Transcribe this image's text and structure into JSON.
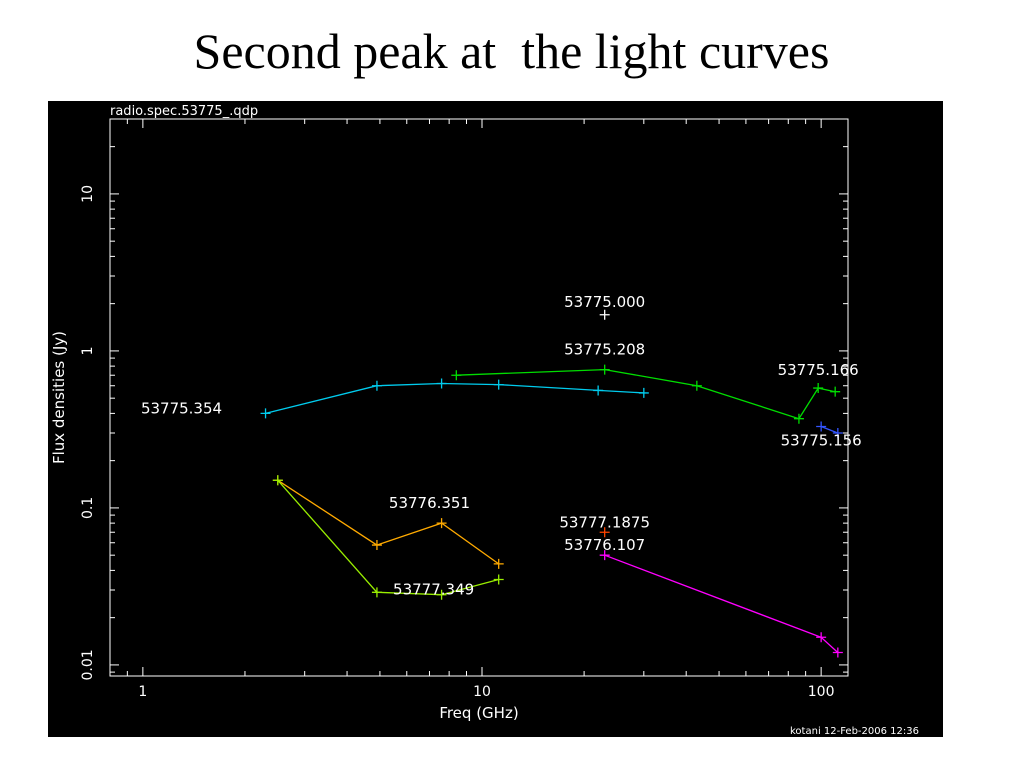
{
  "slide": {
    "title": "Second peak at  the light curves"
  },
  "chart_data": {
    "type": "line",
    "plot_file_label": "radio.spec.53775_.qdp",
    "footer_label": "kotani 12-Feb-2006 12:36",
    "xlabel": "Freq (GHz)",
    "ylabel": "Flux densities (Jy)",
    "xscale": "log",
    "yscale": "log",
    "xlim": [
      0.8,
      120
    ],
    "ylim": [
      0.0085,
      30
    ],
    "x_ticks": [
      {
        "value": 1,
        "label": "1"
      },
      {
        "value": 10,
        "label": "10"
      },
      {
        "value": 100,
        "label": "100"
      }
    ],
    "y_ticks": [
      {
        "value": 0.01,
        "label": "0.01"
      },
      {
        "value": 0.1,
        "label": "0.1"
      },
      {
        "value": 1,
        "label": "1"
      },
      {
        "value": 10,
        "label": "10"
      }
    ],
    "colors": {
      "background": "#000000",
      "frame": "#ffffff",
      "text": "#ffffff"
    },
    "series": [
      {
        "name": "53775.000",
        "color": "#ffffff",
        "connect": false,
        "x": [
          23
        ],
        "y": [
          1.7
        ]
      },
      {
        "name": "53775.208",
        "color": "#00dd00",
        "connect": true,
        "x": [
          8.4,
          23,
          43,
          86,
          98,
          110
        ],
        "y": [
          0.7,
          0.76,
          0.6,
          0.37,
          0.58,
          0.55
        ]
      },
      {
        "name": "53775.354",
        "color": "#00ccee",
        "connect": true,
        "x": [
          2.3,
          4.9,
          7.6,
          11.2,
          22,
          30
        ],
        "y": [
          0.4,
          0.6,
          0.62,
          0.61,
          0.56,
          0.54
        ]
      },
      {
        "name": "53775.156",
        "color": "#3355ff",
        "connect": true,
        "x": [
          100,
          112
        ],
        "y": [
          0.33,
          0.3
        ]
      },
      {
        "name": "53776.351",
        "color": "#ffaa00",
        "connect": true,
        "x": [
          2.5,
          4.9,
          7.6,
          11.2
        ],
        "y": [
          0.15,
          0.058,
          0.08,
          0.044
        ]
      },
      {
        "name": "53777.349",
        "color": "#99ee00",
        "connect": true,
        "x": [
          2.5,
          4.9,
          7.6,
          11.2
        ],
        "y": [
          0.15,
          0.029,
          0.028,
          0.035
        ]
      },
      {
        "name": "53777.1875",
        "color": "#ff4400",
        "connect": false,
        "x": [
          23
        ],
        "y": [
          0.07
        ]
      },
      {
        "name": "53776.107",
        "color": "#ff00ff",
        "connect": true,
        "x": [
          23,
          100,
          112
        ],
        "y": [
          0.05,
          0.015,
          0.012
        ]
      }
    ],
    "annotations": [
      {
        "text": "53775.000",
        "x": 23,
        "y": 1.9
      },
      {
        "text": "53775.208",
        "x": 23,
        "y": 0.95
      },
      {
        "text": "53775.166",
        "x": 98,
        "y": 0.7
      },
      {
        "text": "53775.354",
        "x": 1.3,
        "y": 0.4
      },
      {
        "text": "53775.156",
        "x": 100,
        "y": 0.25
      },
      {
        "text": "53776.351",
        "x": 7.0,
        "y": 0.1
      },
      {
        "text": "53777.1875",
        "x": 23,
        "y": 0.075
      },
      {
        "text": "53776.107",
        "x": 23,
        "y": 0.054
      },
      {
        "text": "53777.349",
        "x": 7.2,
        "y": 0.028
      }
    ]
  }
}
